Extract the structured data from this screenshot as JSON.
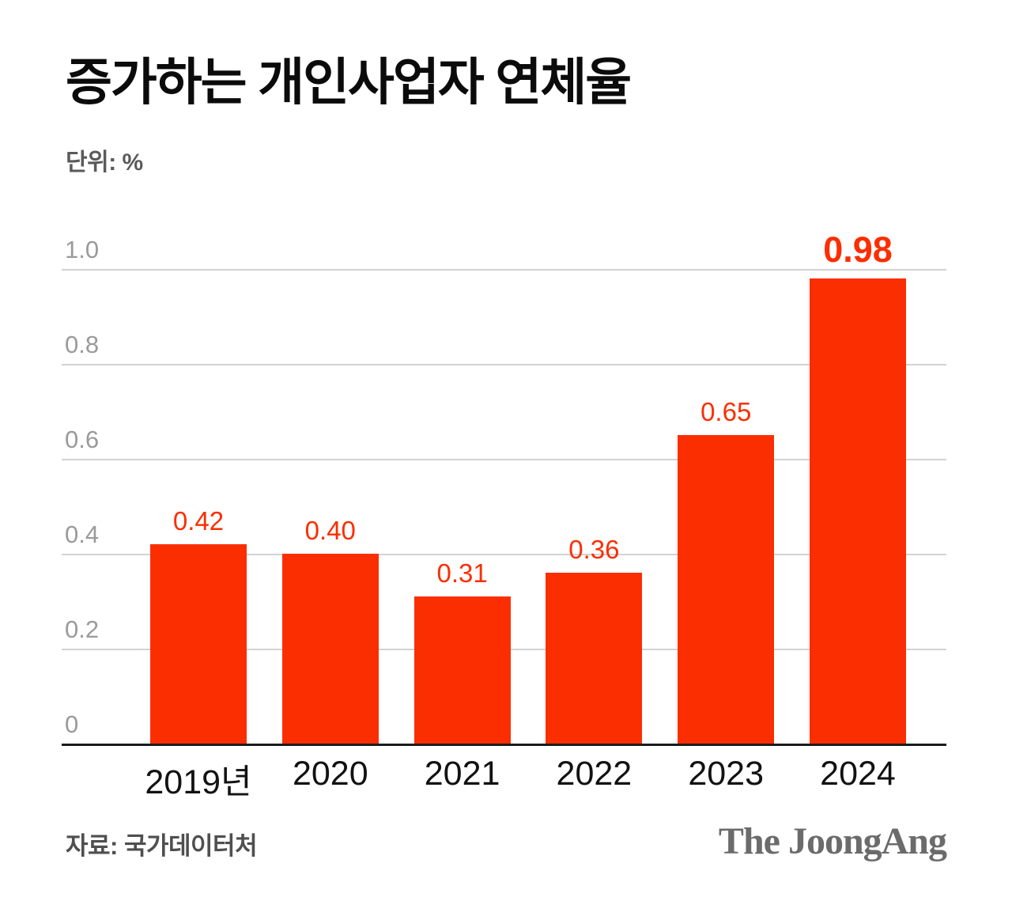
{
  "header": {
    "title": "증가하는 개인사업자 연체율",
    "unit_label": "단위: %"
  },
  "chart_data": {
    "type": "bar",
    "title": "증가하는 개인사업자 연체율",
    "unit": "%",
    "categories": [
      "2019년",
      "2020",
      "2021",
      "2022",
      "2023",
      "2024"
    ],
    "values": [
      0.42,
      0.4,
      0.31,
      0.36,
      0.65,
      0.98
    ],
    "value_labels": [
      "0.42",
      "0.40",
      "0.31",
      "0.36",
      "0.65",
      "0.98"
    ],
    "emphasized_index": 5,
    "ylim": [
      0,
      1.0
    ],
    "yticks": [
      0,
      0.2,
      0.4,
      0.6,
      0.8,
      1.0
    ],
    "ytick_labels": [
      "0",
      "0.2",
      "0.4",
      "0.6",
      "0.8",
      "1.0"
    ],
    "grid": true,
    "legend_position": "none",
    "bar_color": "#fb2e01"
  },
  "footer": {
    "source": "자료: 국가데이터처",
    "logo": "The JoongAng"
  },
  "colors": {
    "accent": "#fb2e01",
    "grid": "#d2d2d2",
    "axis": "#1c1c1c",
    "ytick_text": "#9a9a9a",
    "muted_text": "#4f4f4f",
    "logo_text": "#6b6b6b"
  }
}
